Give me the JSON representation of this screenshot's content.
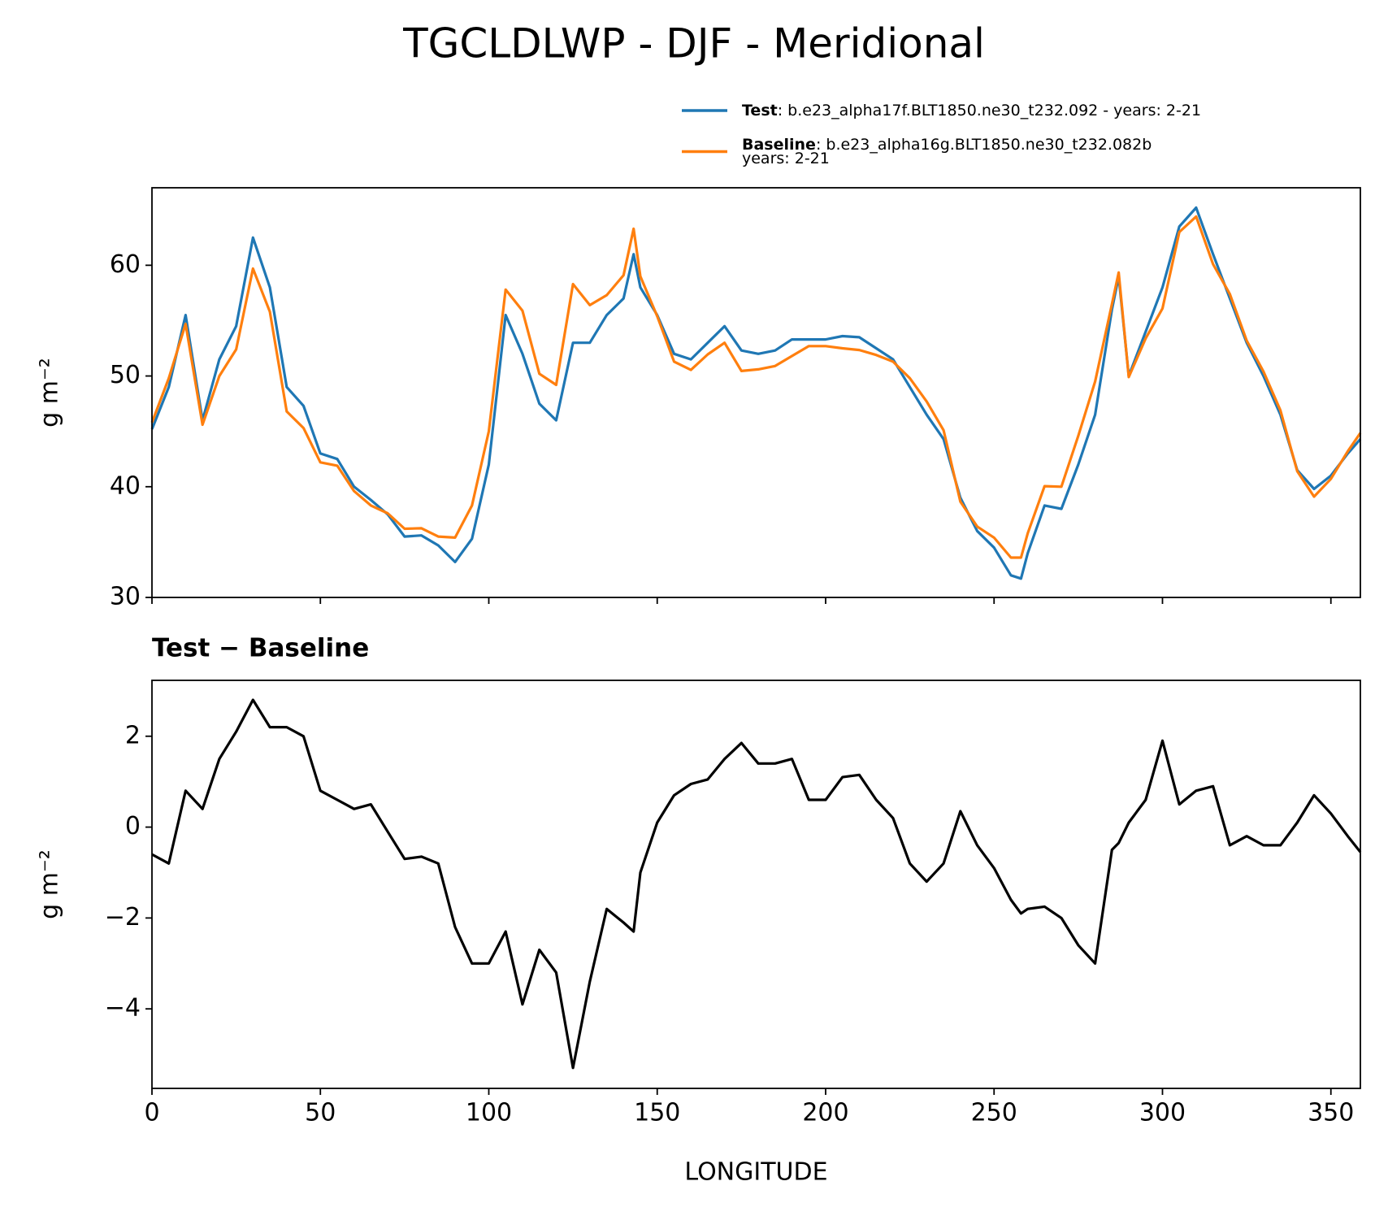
{
  "title": "TGCLDLWP - DJF - Meridional",
  "chart_data": [
    {
      "type": "line",
      "ylabel": "g m⁻²",
      "x": [
        0,
        5,
        10,
        15,
        20,
        25,
        30,
        35,
        40,
        45,
        50,
        55,
        60,
        65,
        70,
        75,
        80,
        85,
        90,
        95,
        100,
        105,
        110,
        115,
        120,
        125,
        130,
        135,
        140,
        143,
        145,
        150,
        155,
        160,
        165,
        170,
        175,
        180,
        185,
        190,
        195,
        200,
        205,
        210,
        215,
        220,
        225,
        230,
        235,
        240,
        245,
        250,
        255,
        258,
        260,
        265,
        270,
        275,
        280,
        285,
        287,
        290,
        295,
        300,
        305,
        310,
        315,
        320,
        325,
        330,
        335,
        340,
        345,
        350,
        355,
        358.75
      ],
      "series": [
        {
          "name": "Test",
          "legend_lines": [
            ": b.e23_alpha17f.BLT1850.ne30_t232.092 - years: 2-21"
          ],
          "color": "#1f77b4",
          "values": [
            45.2,
            49,
            55.5,
            46,
            51.5,
            54.5,
            62.5,
            58,
            49,
            47.3,
            43,
            42.5,
            40,
            38.8,
            37.5,
            35.5,
            35.6,
            34.7,
            33.2,
            35.3,
            42,
            55.5,
            52,
            47.5,
            46,
            53,
            53,
            55.5,
            57,
            61,
            58,
            55.5,
            52,
            51.5,
            53,
            54.5,
            52.3,
            52,
            52.3,
            53.3,
            53.3,
            53.3,
            53.6,
            53.5,
            52.5,
            51.5,
            49,
            46.5,
            44.3,
            39,
            36,
            34.5,
            32,
            31.7,
            34,
            38.3,
            38,
            42,
            46.5,
            56,
            59,
            50,
            54,
            58,
            63.5,
            65.2,
            61,
            57,
            53,
            50,
            46.5,
            41.5,
            39.8,
            41,
            43,
            44.3
          ]
        },
        {
          "name": "Baseline",
          "legend_lines": [
            ": b.e23_alpha16g.BLT1850.ne30_t232.082b",
            "years: 2-21"
          ],
          "color": "#ff7f0e",
          "values": [
            45.8,
            49.8,
            54.7,
            45.6,
            50,
            52.4,
            59.7,
            55.8,
            46.8,
            45.3,
            42.2,
            41.9,
            39.6,
            38.3,
            37.6,
            36.2,
            36.25,
            35.5,
            35.4,
            38.3,
            45,
            57.8,
            55.9,
            50.2,
            49.2,
            58.3,
            56.4,
            57.3,
            59.1,
            63.3,
            59,
            55.4,
            51.3,
            50.55,
            51.95,
            53,
            50.45,
            50.6,
            50.9,
            51.8,
            52.7,
            52.7,
            52.5,
            52.35,
            51.9,
            51.3,
            49.8,
            47.7,
            45.1,
            38.65,
            36.4,
            35.4,
            33.6,
            33.6,
            35.8,
            40.05,
            40,
            44.6,
            49.5,
            56.5,
            59.35,
            49.9,
            53.4,
            56.1,
            63,
            64.4,
            60.1,
            57.4,
            53.2,
            50.4,
            46.9,
            41.4,
            39.1,
            40.7,
            43.2,
            44.85
          ]
        }
      ],
      "xlim": [
        0,
        358.75
      ],
      "ylim": [
        30,
        67
      ],
      "yticks": [
        30,
        40,
        50,
        60
      ],
      "xticks": [
        0,
        50,
        100,
        150,
        200,
        250,
        300,
        350
      ]
    },
    {
      "type": "line",
      "title": "Test − Baseline",
      "ylabel": "g m⁻²",
      "xlabel": "LONGITUDE",
      "x": [
        0,
        5,
        10,
        15,
        20,
        25,
        30,
        35,
        40,
        45,
        50,
        55,
        60,
        65,
        70,
        75,
        80,
        85,
        90,
        95,
        100,
        105,
        110,
        115,
        120,
        125,
        130,
        135,
        140,
        143,
        145,
        150,
        155,
        160,
        165,
        170,
        175,
        180,
        185,
        190,
        195,
        200,
        205,
        210,
        215,
        220,
        225,
        230,
        235,
        240,
        245,
        250,
        255,
        258,
        260,
        265,
        270,
        275,
        280,
        285,
        287,
        290,
        295,
        300,
        305,
        310,
        315,
        320,
        325,
        330,
        335,
        340,
        345,
        350,
        355,
        358.75
      ],
      "series": [
        {
          "color": "#000000",
          "values": [
            -0.6,
            -0.8,
            0.8,
            0.4,
            1.5,
            2.1,
            2.8,
            2.2,
            2.2,
            2.0,
            0.8,
            0.6,
            0.4,
            0.5,
            -0.1,
            -0.7,
            -0.65,
            -0.8,
            -2.2,
            -3.0,
            -3.0,
            -2.3,
            -3.9,
            -2.7,
            -3.2,
            -5.3,
            -3.4,
            -1.8,
            -2.1,
            -2.3,
            -1.0,
            0.1,
            0.7,
            0.95,
            1.05,
            1.5,
            1.85,
            1.4,
            1.4,
            1.5,
            0.6,
            0.6,
            1.1,
            1.15,
            0.6,
            0.2,
            -0.8,
            -1.2,
            -0.8,
            0.35,
            -0.4,
            -0.9,
            -1.6,
            -1.9,
            -1.8,
            -1.75,
            -2.0,
            -2.6,
            -3.0,
            -0.5,
            -0.35,
            0.1,
            0.6,
            1.9,
            0.5,
            0.8,
            0.9,
            -0.4,
            -0.2,
            -0.4,
            -0.4,
            0.1,
            0.7,
            0.3,
            -0.2,
            -0.55
          ]
        }
      ],
      "xlim": [
        0,
        358.75
      ],
      "ylim": [
        -5.75,
        3.23
      ],
      "yticks": [
        {
          "value": -4,
          "label": "−4"
        },
        {
          "value": -2,
          "label": "−2"
        },
        0,
        2
      ],
      "xticks": [
        0,
        50,
        100,
        150,
        200,
        250,
        300,
        350
      ]
    }
  ]
}
